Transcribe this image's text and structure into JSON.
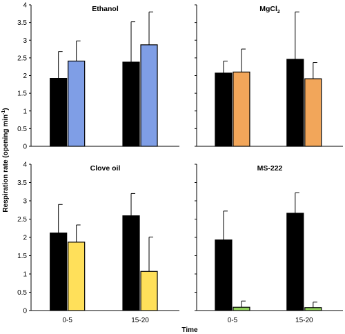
{
  "figure": {
    "ylabel_main": "Respiration rate (opening min",
    "ylabel_sup": "-1",
    "ylabel_end": ")",
    "xlabel": "Time"
  },
  "chart_data": [
    {
      "type": "bar",
      "title": "Ethanol",
      "title_sub": "",
      "categories": [
        "",
        ""
      ],
      "ylim": [
        0,
        4
      ],
      "yticks": [
        0,
        0.5,
        1,
        1.5,
        2,
        2.5,
        3,
        3.5,
        4
      ],
      "series": [
        {
          "color": "#000000",
          "values": [
            1.92,
            2.38
          ],
          "errors": [
            0.76,
            1.14
          ]
        },
        {
          "color": "#7f9ee6",
          "values": [
            2.41,
            2.87
          ],
          "errors": [
            0.57,
            0.93
          ]
        }
      ]
    },
    {
      "type": "bar",
      "title": "MgCl",
      "title_sub": "2",
      "categories": [
        "",
        ""
      ],
      "ylim": [
        0,
        4
      ],
      "yticks": [],
      "series": [
        {
          "color": "#000000",
          "values": [
            2.07,
            2.46
          ],
          "errors": [
            0.34,
            1.34
          ]
        },
        {
          "color": "#f2a65a",
          "values": [
            2.1,
            1.91
          ],
          "errors": [
            0.65,
            0.46
          ]
        }
      ]
    },
    {
      "type": "bar",
      "title": "Clove oil",
      "title_sub": "",
      "categories": [
        "0-5",
        "15-20"
      ],
      "ylim": [
        0,
        4
      ],
      "yticks": [
        0,
        0.5,
        1,
        1.5,
        2,
        2.5,
        3,
        3.5,
        4
      ],
      "series": [
        {
          "color": "#000000",
          "values": [
            2.12,
            2.59
          ],
          "errors": [
            0.78,
            0.61
          ]
        },
        {
          "color": "#ffe05a",
          "values": [
            1.87,
            1.07
          ],
          "errors": [
            0.47,
            0.94
          ]
        }
      ]
    },
    {
      "type": "bar",
      "title": "MS-222",
      "title_sub": "",
      "categories": [
        "0-5",
        "15-20"
      ],
      "ylim": [
        0,
        4
      ],
      "yticks": [],
      "series": [
        {
          "color": "#000000",
          "values": [
            1.93,
            2.66
          ],
          "errors": [
            0.79,
            0.56
          ]
        },
        {
          "color": "#8fcf5a",
          "values": [
            0.09,
            0.08
          ],
          "errors": [
            0.17,
            0.15
          ]
        }
      ]
    }
  ]
}
